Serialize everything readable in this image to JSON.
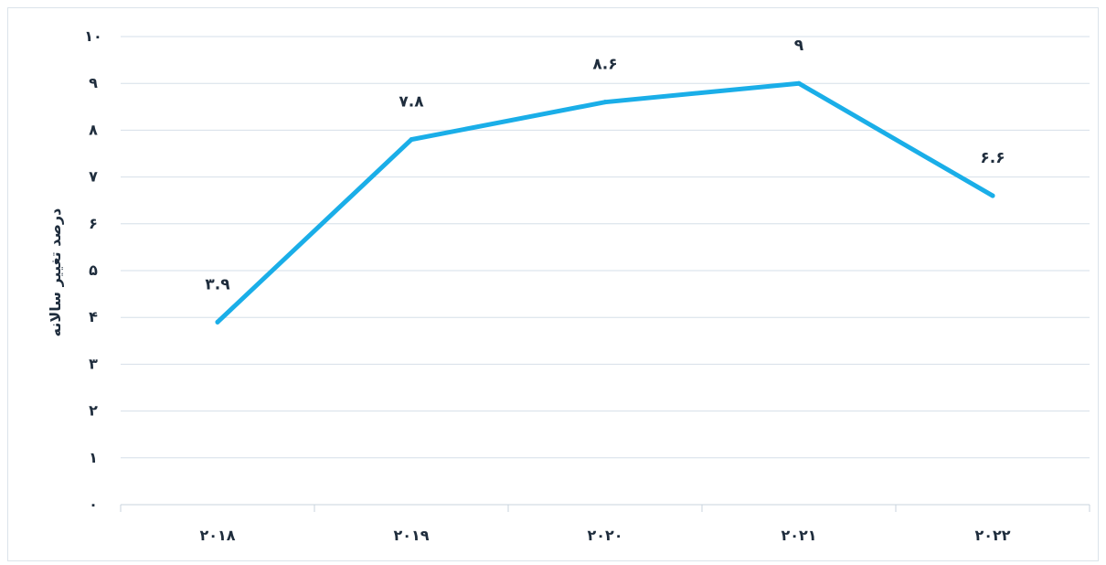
{
  "chart_data": {
    "type": "line",
    "categories": [
      "۲۰۱۸",
      "۲۰۱۹",
      "۲۰۲۰",
      "۲۰۲۱",
      "۲۰۲۲"
    ],
    "series": [
      {
        "values": [
          3.9,
          7.8,
          8.6,
          9,
          6.6
        ],
        "color": "#1aaee8"
      }
    ],
    "data_labels": [
      "۳.۹",
      "۷.۸",
      "۸.۶",
      "۹",
      "۶.۶"
    ],
    "y_ticks": [
      {
        "value": 0,
        "label": "۰"
      },
      {
        "value": 1,
        "label": "۱"
      },
      {
        "value": 2,
        "label": "۲"
      },
      {
        "value": 3,
        "label": "۳"
      },
      {
        "value": 4,
        "label": "۴"
      },
      {
        "value": 5,
        "label": "۵"
      },
      {
        "value": 6,
        "label": "۶"
      },
      {
        "value": 7,
        "label": "۷"
      },
      {
        "value": 8,
        "label": "۸"
      },
      {
        "value": 9,
        "label": "۹"
      },
      {
        "value": 10,
        "label": "۱۰"
      }
    ],
    "ylabel": "درصد تغییر سالانه",
    "xlabel": "",
    "title": "",
    "ylim": [
      0,
      10
    ],
    "grid": true,
    "colors": {
      "grid": "#d6dfe8",
      "axis": "#c9d3dc",
      "text": "#1f2d3d"
    }
  }
}
